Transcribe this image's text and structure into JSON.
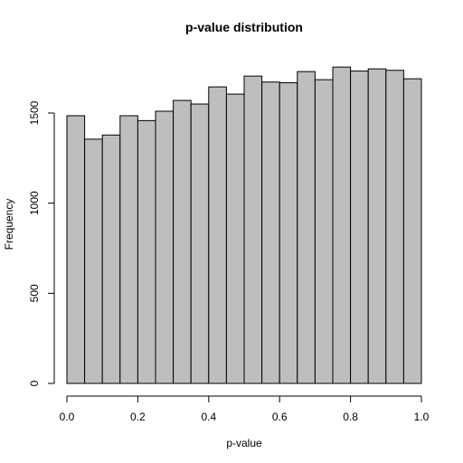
{
  "chart_data": {
    "type": "bar",
    "title": "p-value distribution",
    "xlabel": "p-value",
    "ylabel": "Frequency",
    "xlim": [
      0,
      1
    ],
    "ylim": [
      0,
      1760
    ],
    "bin_width": 0.05,
    "bin_edges": [
      0.0,
      0.05,
      0.1,
      0.15,
      0.2,
      0.25,
      0.3,
      0.35,
      0.4,
      0.45,
      0.5,
      0.55,
      0.6,
      0.65,
      0.7,
      0.75,
      0.8,
      0.85,
      0.9,
      0.95,
      1.0
    ],
    "values": [
      1485,
      1355,
      1378,
      1485,
      1458,
      1510,
      1570,
      1550,
      1645,
      1605,
      1705,
      1672,
      1668,
      1730,
      1685,
      1755,
      1733,
      1745,
      1737,
      1690
    ],
    "xticks": [
      0.0,
      0.2,
      0.4,
      0.6,
      0.8,
      1.0
    ],
    "xtick_labels": [
      "0.0",
      "0.2",
      "0.4",
      "0.6",
      "0.8",
      "1.0"
    ],
    "yticks": [
      0,
      500,
      1000,
      1500
    ],
    "ytick_labels": [
      "0",
      "500",
      "1000",
      "1500"
    ],
    "bar_color": "#bebebe",
    "edge_color": "#000000",
    "grid": false,
    "legend": "none"
  }
}
